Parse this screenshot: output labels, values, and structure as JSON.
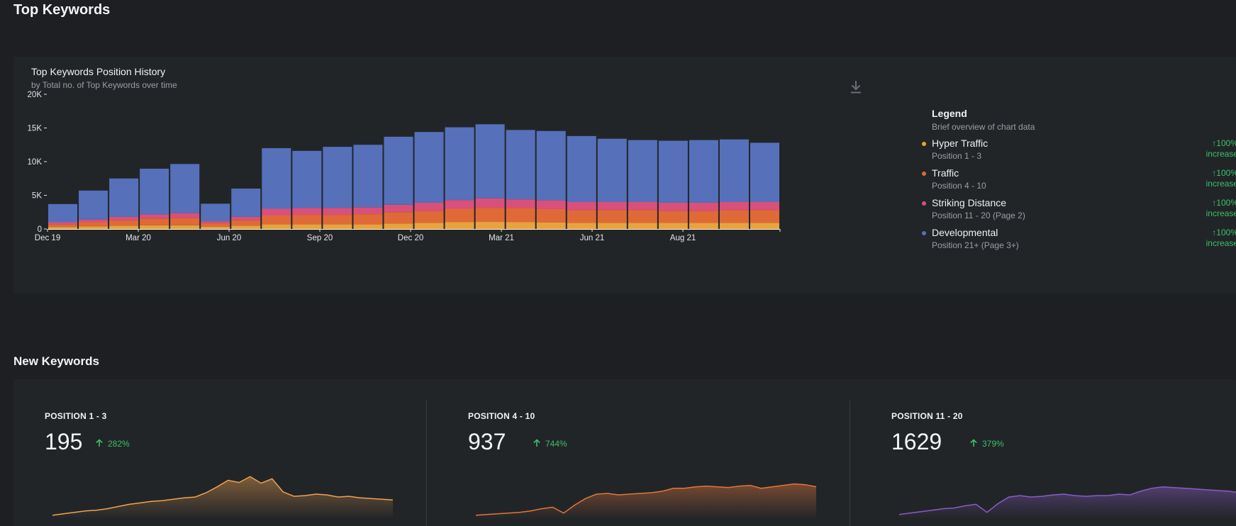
{
  "top_section": {
    "title": "Top Keywords"
  },
  "history_chart": {
    "title": "Top Keywords Position History",
    "subtitle": "by Total no. of Top Keywords over time",
    "download_icon": "download-icon"
  },
  "chart_data": [
    {
      "type": "bar",
      "stacked": true,
      "title": "Top Keywords Position History",
      "subtitle": "by Total no. of Top Keywords over time",
      "x_tick_labels": [
        "Dec 19",
        "Mar 20",
        "Jun 20",
        "Sep 20",
        "Dec 20",
        "Mar 21",
        "Jun 21",
        "Aug 21"
      ],
      "y_tick_labels": [
        "0",
        "5K",
        "10K",
        "15K",
        "20K"
      ],
      "ylim": [
        0,
        20000
      ],
      "grid": false,
      "legend_position": "right",
      "x": [
        "Dec 19",
        "Jan 20",
        "Feb 20",
        "Mar 20",
        "Apr 20",
        "May 20",
        "Jun 20",
        "Jul 20",
        "Aug 20",
        "Sep 20",
        "Oct 20",
        "Nov 20",
        "Dec 20",
        "Jan 21",
        "Feb 21",
        "Mar 21",
        "Apr 21",
        "May 21",
        "Jun 21",
        "Jul 21",
        "Aug 21",
        "Sep 21",
        "Oct 21",
        "Nov 21"
      ],
      "series": [
        {
          "name": "Hyper Traffic",
          "color": "#e8a33c",
          "values": [
            300,
            400,
            500,
            550,
            550,
            350,
            500,
            700,
            700,
            700,
            700,
            800,
            900,
            1000,
            1050,
            1000,
            950,
            900,
            900,
            900,
            900,
            900,
            900,
            900
          ]
        },
        {
          "name": "Traffic",
          "color": "#df6a37",
          "values": [
            400,
            600,
            800,
            1000,
            1100,
            500,
            800,
            1300,
            1400,
            1400,
            1500,
            1700,
            1800,
            2000,
            2100,
            2100,
            2000,
            1900,
            1900,
            1900,
            1800,
            1800,
            1900,
            1900
          ]
        },
        {
          "name": "Striking Distance",
          "color": "#d9507a",
          "values": [
            300,
            400,
            500,
            600,
            700,
            300,
            500,
            1000,
            1000,
            1000,
            1000,
            1100,
            1200,
            1300,
            1400,
            1300,
            1300,
            1200,
            1200,
            1200,
            1200,
            1200,
            1200,
            1200
          ]
        },
        {
          "name": "Developmental",
          "color": "#5670ba",
          "values": [
            2700,
            4300,
            5700,
            6800,
            7300,
            2600,
            4200,
            9000,
            8500,
            9100,
            9300,
            10100,
            10500,
            10800,
            11000,
            10300,
            10300,
            9800,
            9400,
            9200,
            9200,
            9300,
            9300,
            8800
          ]
        }
      ]
    },
    {
      "type": "area",
      "title": "POSITION 1 - 3",
      "color": "#f0a24e",
      "values": [
        5,
        7,
        9,
        11,
        12,
        14,
        17,
        20,
        22,
        24,
        25,
        27,
        29,
        30,
        36,
        44,
        53,
        50,
        58,
        49,
        55,
        37,
        31,
        32,
        34,
        33,
        30,
        31,
        29,
        28,
        27,
        26
      ]
    },
    {
      "type": "area",
      "title": "POSITION 4 - 10",
      "color": "#e2753c",
      "values": [
        5,
        6,
        7,
        8,
        9,
        11,
        14,
        16,
        8,
        19,
        28,
        34,
        35,
        33,
        34,
        35,
        36,
        38,
        42,
        42,
        44,
        45,
        44,
        43,
        45,
        46,
        42,
        44,
        46,
        48,
        47,
        44
      ]
    },
    {
      "type": "area",
      "title": "POSITION 11 - 20",
      "color": "#8a5cc4",
      "values": [
        6,
        8,
        10,
        12,
        14,
        15,
        18,
        20,
        9,
        21,
        30,
        32,
        30,
        31,
        33,
        34,
        32,
        31,
        32,
        32,
        34,
        33,
        38,
        42,
        44,
        43,
        42,
        41,
        40,
        39,
        38,
        36
      ]
    }
  ],
  "legend": {
    "title": "Legend",
    "subtitle": "Brief overview of chart data",
    "items": [
      {
        "name": "Hyper Traffic",
        "range": "Position 1 - 3",
        "change": "↑100%",
        "change_label": "increase",
        "color": "#e8a33c"
      },
      {
        "name": "Traffic",
        "range": "Position 4 - 10",
        "change": "↑100%",
        "change_label": "increase",
        "color": "#df6a37"
      },
      {
        "name": "Striking Distance",
        "range": "Position 11 - 20 (Page 2)",
        "change": "↑100%",
        "change_label": "increase",
        "color": "#d9507a"
      },
      {
        "name": "Developmental",
        "range": "Position 21+ (Page 3+)",
        "change": "↑100%",
        "change_label": "increase",
        "color": "#5670ba"
      }
    ]
  },
  "new_section": {
    "title": "New Keywords",
    "cards": [
      {
        "label": "POSITION 1 - 3",
        "value": "195",
        "change": "282%",
        "arrow_icon": "arrow-up-icon",
        "color": "#f0a24e"
      },
      {
        "label": "POSITION 4 - 10",
        "value": "937",
        "change": "744%",
        "arrow_icon": "arrow-up-icon",
        "color": "#e2753c"
      },
      {
        "label": "POSITION 11 - 20",
        "value": "1629",
        "change": "379%",
        "arrow_icon": "arrow-up-icon",
        "color": "#8a5cc4"
      }
    ]
  },
  "colors": {
    "background": "#1d1f22",
    "panel": "#222528",
    "positive": "#3bc06a",
    "muted_text": "#9a9ea5"
  }
}
